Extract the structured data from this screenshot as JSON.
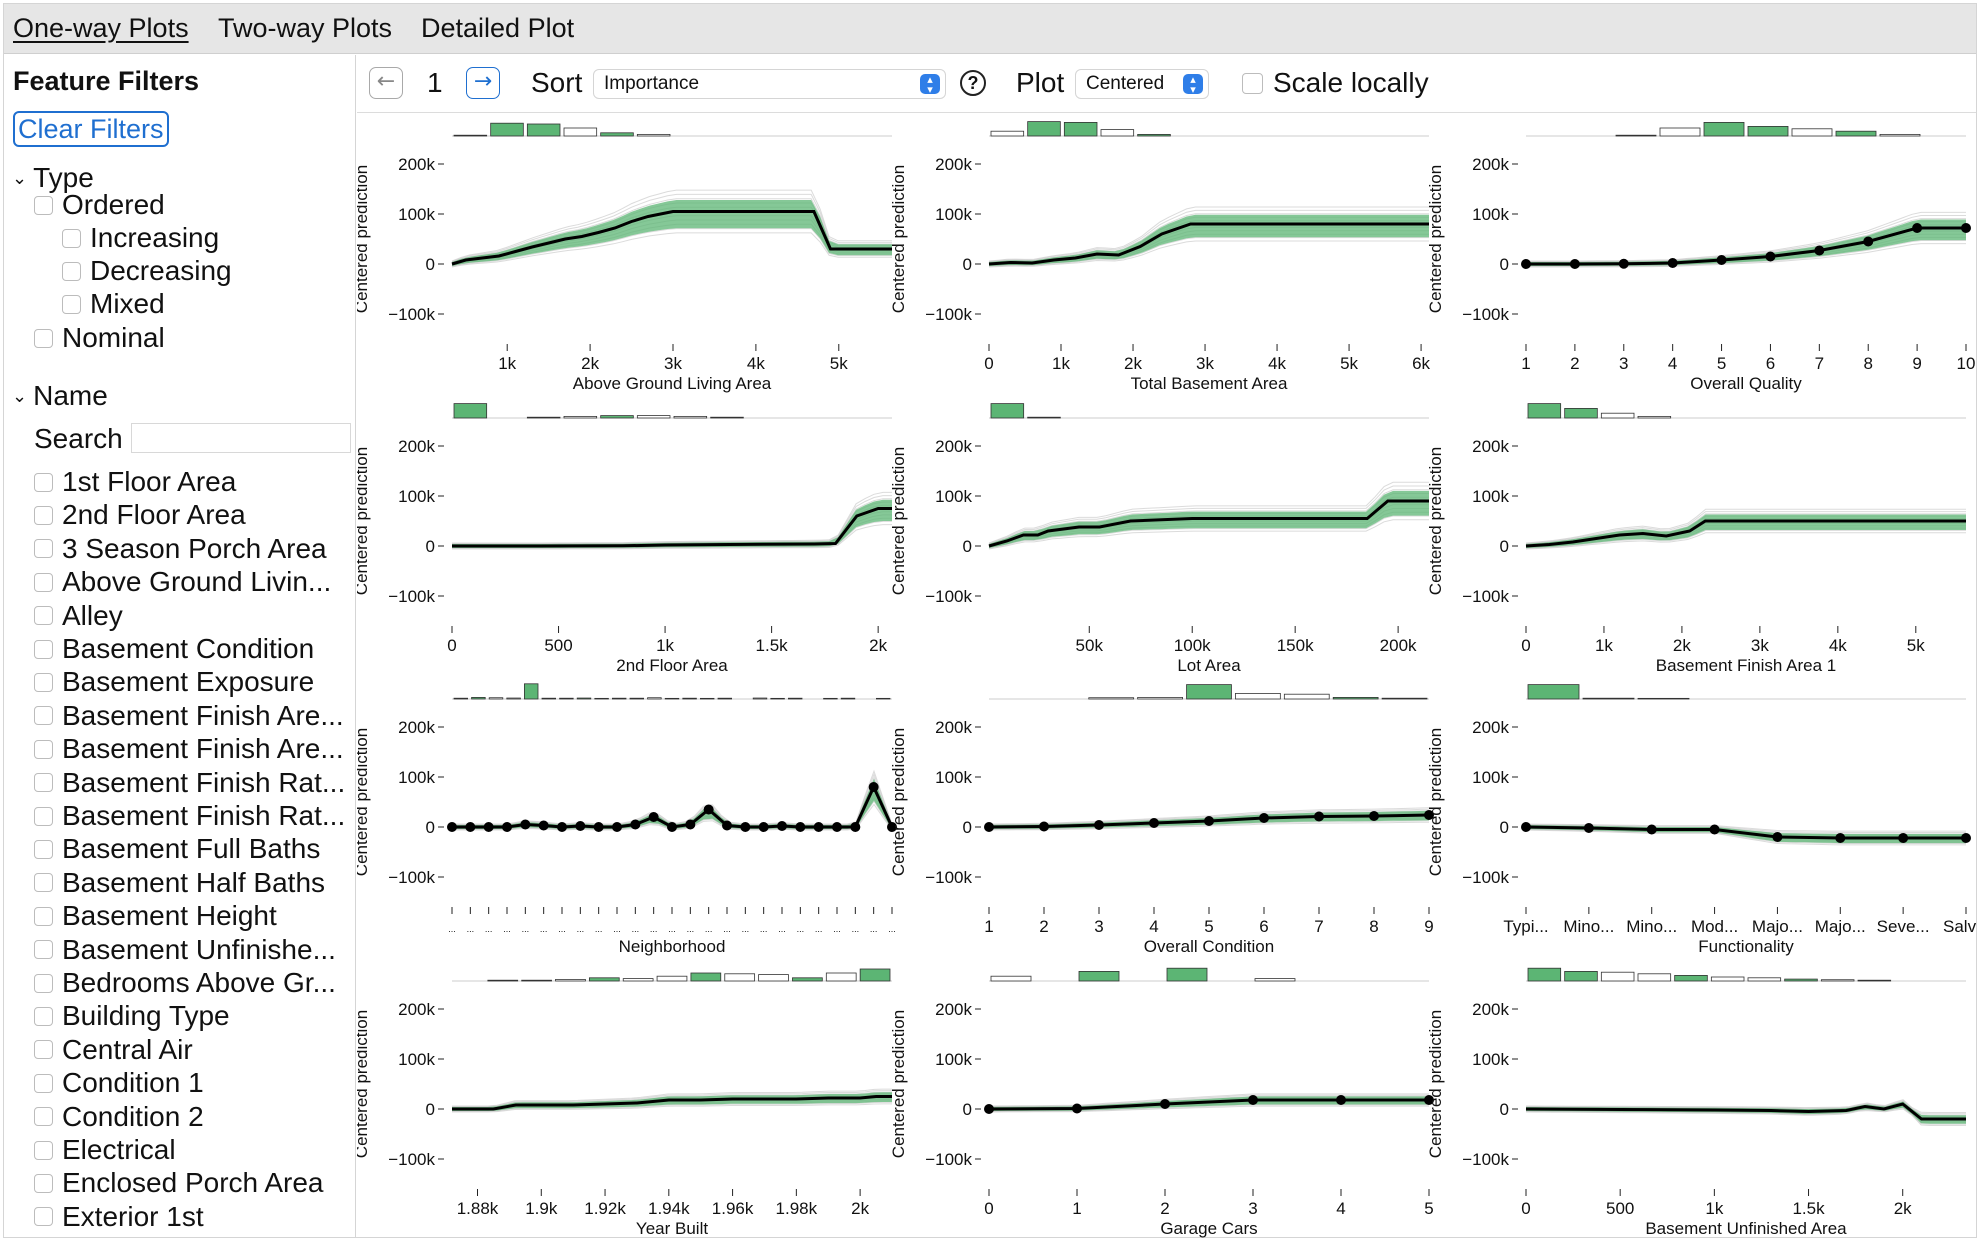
{
  "tabs": [
    {
      "label": "One-way Plots",
      "active": true
    },
    {
      "label": "Two-way Plots",
      "active": false
    },
    {
      "label": "Detailed Plot",
      "active": false
    }
  ],
  "sidebar": {
    "title": "Feature Filters",
    "clear_label": "Clear Filters",
    "type_section": "Type",
    "type_items": [
      {
        "label": "Ordered",
        "level": 0
      },
      {
        "label": "Increasing",
        "level": 1
      },
      {
        "label": "Decreasing",
        "level": 1
      },
      {
        "label": "Mixed",
        "level": 1
      },
      {
        "label": "Nominal",
        "level": 0
      }
    ],
    "name_section": "Name",
    "search_label": "Search",
    "search_value": "",
    "name_items": [
      "1st Floor Area",
      "2nd Floor Area",
      "3 Season Porch Area",
      "Above Ground Livin...",
      "Alley",
      "Basement Condition",
      "Basement Exposure",
      "Basement Finish Are...",
      "Basement Finish Are...",
      "Basement Finish Rat...",
      "Basement Finish Rat...",
      "Basement Full Baths",
      "Basement Half Baths",
      "Basement Height",
      "Basement Unfinishe...",
      "Bedrooms Above Gr...",
      "Building Type",
      "Central Air",
      "Condition 1",
      "Condition 2",
      "Electrical",
      "Enclosed Porch Area",
      "Exterior 1st"
    ]
  },
  "toolbar": {
    "page": "1",
    "sort_label": "Sort",
    "sort_value": "Importance",
    "plot_label": "Plot",
    "plot_value": "Centered",
    "scale_label": "Scale locally",
    "prev_icon": "arrow-left-icon",
    "next_icon": "arrow-right-icon",
    "help_icon": "question-circle-icon"
  },
  "colors": {
    "accent": "#1f6fd0",
    "green": "#5cb574",
    "gray_band": "#bdbdbd",
    "line": "#000000"
  },
  "chart_data": [
    {
      "type": "line",
      "title": "",
      "xlabel": "Above Ground Living Area",
      "ylabel": "Centered prediction",
      "ylim": [
        -130000,
        230000
      ],
      "xlim": [
        334,
        5642
      ],
      "x_ticks": [
        1000,
        2000,
        3000,
        4000,
        5000
      ],
      "x_tick_labels": [
        "1k",
        "2k",
        "3k",
        "4k",
        "5k"
      ],
      "y_ticks": [
        -100000,
        0,
        100000,
        200000
      ],
      "y_tick_labels": [
        "−100k",
        "0",
        "100k",
        "200k"
      ],
      "hist": [
        0.05,
        0.8,
        0.75,
        0.5,
        0.2,
        0.1,
        0.03,
        0,
        0,
        0,
        0,
        0
      ],
      "x": [
        334,
        500,
        700,
        900,
        1100,
        1300,
        1500,
        1700,
        1900,
        2100,
        2300,
        2500,
        2700,
        3000,
        3300,
        3600,
        4000,
        4400,
        4700,
        4900,
        5642
      ],
      "y": [
        0,
        8000,
        12000,
        16000,
        25000,
        34000,
        42000,
        50000,
        55000,
        63000,
        72000,
        85000,
        95000,
        105000,
        105000,
        105000,
        105000,
        105000,
        105000,
        30000,
        30000
      ],
      "markers": false
    },
    {
      "type": "line",
      "title": "",
      "xlabel": "Total Basement Area",
      "ylabel": "Centered prediction",
      "ylim": [
        -130000,
        230000
      ],
      "xlim": [
        0,
        6110
      ],
      "x_ticks": [
        0,
        1000,
        2000,
        3000,
        4000,
        5000,
        6000
      ],
      "x_tick_labels": [
        "0",
        "1k",
        "2k",
        "3k",
        "4k",
        "5k",
        "6k"
      ],
      "y_ticks": [
        -100000,
        0,
        100000,
        200000
      ],
      "y_tick_labels": [
        "−100k",
        "0",
        "100k",
        "200k"
      ],
      "hist": [
        0.3,
        0.9,
        0.85,
        0.4,
        0.1,
        0.03,
        0,
        0,
        0,
        0,
        0,
        0
      ],
      "x": [
        0,
        300,
        600,
        900,
        1200,
        1500,
        1800,
        2100,
        2400,
        2800,
        3500,
        6110
      ],
      "y": [
        0,
        3000,
        2000,
        8000,
        12000,
        20000,
        18000,
        35000,
        60000,
        80000,
        80000,
        80000
      ],
      "markers": false
    },
    {
      "type": "line",
      "title": "",
      "xlabel": "Overall Quality",
      "ylabel": "Centered prediction",
      "ylim": [
        -130000,
        230000
      ],
      "xlim": [
        1,
        10
      ],
      "x_ticks": [
        1,
        2,
        3,
        4,
        5,
        6,
        7,
        8,
        9,
        10
      ],
      "x_tick_labels": [
        "1",
        "2",
        "3",
        "4",
        "5",
        "6",
        "7",
        "8",
        "9",
        "10"
      ],
      "y_ticks": [
        -100000,
        0,
        100000,
        200000
      ],
      "y_tick_labels": [
        "−100k",
        "0",
        "100k",
        "200k"
      ],
      "hist": [
        0.02,
        0.02,
        0.05,
        0.5,
        0.85,
        0.6,
        0.45,
        0.3,
        0.1,
        0.03
      ],
      "x": [
        1,
        2,
        3,
        4,
        5,
        6,
        7,
        8,
        9,
        10
      ],
      "y": [
        0,
        0,
        500,
        2000,
        8000,
        15000,
        27000,
        45000,
        72000,
        72000
      ],
      "markers": true
    },
    {
      "type": "line",
      "title": "",
      "xlabel": "2nd Floor Area",
      "ylabel": "Centered prediction",
      "ylim": [
        -130000,
        230000
      ],
      "xlim": [
        0,
        2065
      ],
      "x_ticks": [
        0,
        500,
        1000,
        1500,
        2000
      ],
      "x_tick_labels": [
        "0",
        "500",
        "1k",
        "1.5k",
        "2k"
      ],
      "y_ticks": [
        -100000,
        0,
        100000,
        200000
      ],
      "y_tick_labels": [
        "−100k",
        "0",
        "100k",
        "200k"
      ],
      "hist": [
        0.9,
        0.02,
        0.05,
        0.1,
        0.15,
        0.15,
        0.1,
        0.05,
        0.02,
        0,
        0,
        0
      ],
      "x": [
        0,
        400,
        800,
        1000,
        1300,
        1700,
        1800,
        1900,
        2000,
        2065
      ],
      "y": [
        0,
        0,
        500,
        2000,
        3000,
        4000,
        5000,
        60000,
        75000,
        75000
      ],
      "markers": false
    },
    {
      "type": "line",
      "title": "",
      "xlabel": "Lot Area",
      "ylabel": "Centered prediction",
      "ylim": [
        -130000,
        230000
      ],
      "xlim": [
        1300,
        215000
      ],
      "x_ticks": [
        50000,
        100000,
        150000,
        200000
      ],
      "x_tick_labels": [
        "50k",
        "100k",
        "150k",
        "200k"
      ],
      "y_ticks": [
        -100000,
        0,
        100000,
        200000
      ],
      "y_tick_labels": [
        "−100k",
        "0",
        "100k",
        "200k"
      ],
      "hist": [
        0.9,
        0.05,
        0.02,
        0,
        0,
        0,
        0,
        0,
        0,
        0,
        0,
        0
      ],
      "x": [
        1300,
        10000,
        18000,
        25000,
        30000,
        45000,
        55000,
        70000,
        100000,
        150000,
        185000,
        195000,
        215000
      ],
      "y": [
        0,
        10000,
        22000,
        22000,
        30000,
        38000,
        38000,
        50000,
        55000,
        55000,
        55000,
        90000,
        90000
      ],
      "markers": false
    },
    {
      "type": "line",
      "title": "",
      "xlabel": "Basement Finish Area 1",
      "ylabel": "Centered prediction",
      "ylim": [
        -130000,
        230000
      ],
      "xlim": [
        0,
        5644
      ],
      "x_ticks": [
        0,
        1000,
        2000,
        3000,
        4000,
        5000
      ],
      "x_tick_labels": [
        "0",
        "1k",
        "2k",
        "3k",
        "4k",
        "5k"
      ],
      "y_ticks": [
        -100000,
        0,
        100000,
        200000
      ],
      "y_tick_labels": [
        "−100k",
        "0",
        "100k",
        "200k"
      ],
      "hist": [
        0.9,
        0.6,
        0.3,
        0.1,
        0.02,
        0,
        0,
        0,
        0,
        0,
        0,
        0
      ],
      "x": [
        0,
        300,
        600,
        900,
        1200,
        1500,
        1800,
        2100,
        2300,
        5644
      ],
      "y": [
        0,
        3000,
        8000,
        15000,
        22000,
        25000,
        20000,
        30000,
        50000,
        50000
      ],
      "markers": false
    },
    {
      "type": "line",
      "title": "",
      "xlabel": "Neighborhood",
      "ylabel": "Centered prediction",
      "ylim": [
        -130000,
        230000
      ],
      "xlim": [
        0,
        24
      ],
      "x_ticks": [
        0,
        1,
        2,
        3,
        4,
        5,
        6,
        7,
        8,
        9,
        10,
        11,
        12,
        13,
        14,
        15,
        16,
        17,
        18,
        19,
        20,
        21,
        22,
        23,
        24
      ],
      "x_tick_labels": [
        "...",
        "...",
        "...",
        "...",
        "...",
        "...",
        "...",
        "...",
        "...",
        "...",
        "...",
        "...",
        "...",
        "...",
        "...",
        "...",
        "...",
        "...",
        "...",
        "...",
        "...",
        "...",
        "...",
        "...",
        "..."
      ],
      "y_ticks": [
        -100000,
        0,
        100000,
        200000
      ],
      "y_tick_labels": [
        "−100k",
        "0",
        "100k",
        "200k"
      ],
      "hist": [
        0.05,
        0.1,
        0.08,
        0.06,
        0.95,
        0.05,
        0.05,
        0.06,
        0.04,
        0.05,
        0.05,
        0.08,
        0.04,
        0.05,
        0.04,
        0.05,
        0.03,
        0.06,
        0.04,
        0.05,
        0.03,
        0.04,
        0.05,
        0.03,
        0.04
      ],
      "x": [
        0,
        1,
        2,
        3,
        4,
        5,
        6,
        7,
        8,
        9,
        10,
        11,
        12,
        13,
        14,
        15,
        16,
        17,
        18,
        19,
        20,
        21,
        22,
        23,
        24
      ],
      "y": [
        0,
        0,
        0,
        0,
        5000,
        3000,
        0,
        2000,
        0,
        0,
        5000,
        20000,
        0,
        5000,
        35000,
        3000,
        0,
        0,
        2000,
        0,
        0,
        0,
        0,
        80000,
        0
      ],
      "markers": true
    },
    {
      "type": "line",
      "title": "",
      "xlabel": "Overall Condition",
      "ylabel": "Centered prediction",
      "ylim": [
        -130000,
        230000
      ],
      "xlim": [
        1,
        9
      ],
      "x_ticks": [
        1,
        2,
        3,
        4,
        5,
        6,
        7,
        8,
        9
      ],
      "x_tick_labels": [
        "1",
        "2",
        "3",
        "4",
        "5",
        "6",
        "7",
        "8",
        "9"
      ],
      "y_ticks": [
        -100000,
        0,
        100000,
        200000
      ],
      "y_tick_labels": [
        "−100k",
        "0",
        "100k",
        "200k"
      ],
      "hist": [
        0.02,
        0.03,
        0.08,
        0.1,
        0.9,
        0.35,
        0.3,
        0.1,
        0.05
      ],
      "x": [
        1,
        2,
        3,
        4,
        5,
        6,
        7,
        8,
        9
      ],
      "y": [
        0,
        1000,
        4000,
        8000,
        12000,
        18000,
        21000,
        22000,
        24000
      ],
      "markers": true
    },
    {
      "type": "line",
      "title": "",
      "xlabel": "Functionality",
      "ylabel": "Centered prediction",
      "ylim": [
        -130000,
        230000
      ],
      "xlim": [
        0,
        7
      ],
      "x_ticks": [
        0,
        1,
        2,
        3,
        4,
        5,
        6,
        7
      ],
      "x_tick_labels": [
        "Typi...",
        "Mino...",
        "Mino...",
        "Mod...",
        "Majo...",
        "Majo...",
        "Seve...",
        "Salv..."
      ],
      "y_ticks": [
        -100000,
        0,
        100000,
        200000
      ],
      "y_tick_labels": [
        "−100k",
        "0",
        "100k",
        "200k"
      ],
      "hist": [
        0.9,
        0.05,
        0.04,
        0.03,
        0.02,
        0.01,
        0.01,
        0.01
      ],
      "x": [
        0,
        1,
        2,
        3,
        4,
        5,
        6,
        7
      ],
      "y": [
        0,
        -2000,
        -5000,
        -5000,
        -20000,
        -22000,
        -22000,
        -22000
      ],
      "markers": true
    },
    {
      "type": "line",
      "title": "",
      "xlabel": "Year Built",
      "ylabel": "Centered prediction",
      "ylim": [
        -130000,
        230000
      ],
      "xlim": [
        1872,
        2010
      ],
      "x_ticks": [
        1880,
        1900,
        1920,
        1940,
        1960,
        1980,
        2000
      ],
      "x_tick_labels": [
        "1.88k",
        "1.9k",
        "1.92k",
        "1.94k",
        "1.96k",
        "1.98k",
        "2k"
      ],
      "y_ticks": [
        -100000,
        0,
        100000,
        200000
      ],
      "y_tick_labels": [
        "−100k",
        "0",
        "100k",
        "200k"
      ],
      "hist": [
        0.02,
        0.05,
        0.05,
        0.1,
        0.2,
        0.15,
        0.3,
        0.5,
        0.45,
        0.4,
        0.2,
        0.5,
        0.75
      ],
      "x": [
        1872,
        1885,
        1892,
        1900,
        1910,
        1920,
        1930,
        1940,
        1950,
        1960,
        1970,
        1980,
        1990,
        2000,
        2005,
        2010
      ],
      "y": [
        0,
        0,
        8000,
        8000,
        8000,
        10000,
        12000,
        18000,
        18000,
        20000,
        20000,
        20000,
        22000,
        22000,
        25000,
        25000
      ],
      "markers": false
    },
    {
      "type": "line",
      "title": "",
      "xlabel": "Garage Cars",
      "ylabel": "Centered prediction",
      "ylim": [
        -130000,
        230000
      ],
      "xlim": [
        0,
        5
      ],
      "x_ticks": [
        0,
        1,
        2,
        3,
        4,
        5
      ],
      "x_tick_labels": [
        "0",
        "1",
        "2",
        "3",
        "4",
        "5"
      ],
      "y_ticks": [
        -100000,
        0,
        100000,
        200000
      ],
      "y_tick_labels": [
        "−100k",
        "0",
        "100k",
        "200k"
      ],
      "hist": [
        0.3,
        0.02,
        0.6,
        0.02,
        0.8,
        0.02,
        0.15,
        0.02,
        0.01,
        0.01
      ],
      "x": [
        0,
        1,
        2,
        3,
        4,
        5
      ],
      "y": [
        0,
        1000,
        10000,
        18000,
        18000,
        18000
      ],
      "markers": true
    },
    {
      "type": "line",
      "title": "",
      "xlabel": "Basement Unfinished Area",
      "ylabel": "Centered prediction",
      "ylim": [
        -130000,
        230000
      ],
      "xlim": [
        0,
        2336
      ],
      "x_ticks": [
        0,
        500,
        1000,
        1500,
        2000
      ],
      "x_tick_labels": [
        "0",
        "500",
        "1k",
        "1.5k",
        "2k"
      ],
      "y_ticks": [
        -100000,
        0,
        100000,
        200000
      ],
      "y_tick_labels": [
        "−100k",
        "0",
        "100k",
        "200k"
      ],
      "hist": [
        0.8,
        0.6,
        0.55,
        0.45,
        0.35,
        0.25,
        0.2,
        0.12,
        0.08,
        0.05,
        0.02,
        0.01
      ],
      "x": [
        0,
        500,
        1000,
        1300,
        1500,
        1700,
        1800,
        1900,
        2000,
        2100,
        2336
      ],
      "y": [
        0,
        -1000,
        -2000,
        -3000,
        -5000,
        -3000,
        5000,
        0,
        10000,
        -20000,
        -20000
      ],
      "markers": false
    }
  ]
}
